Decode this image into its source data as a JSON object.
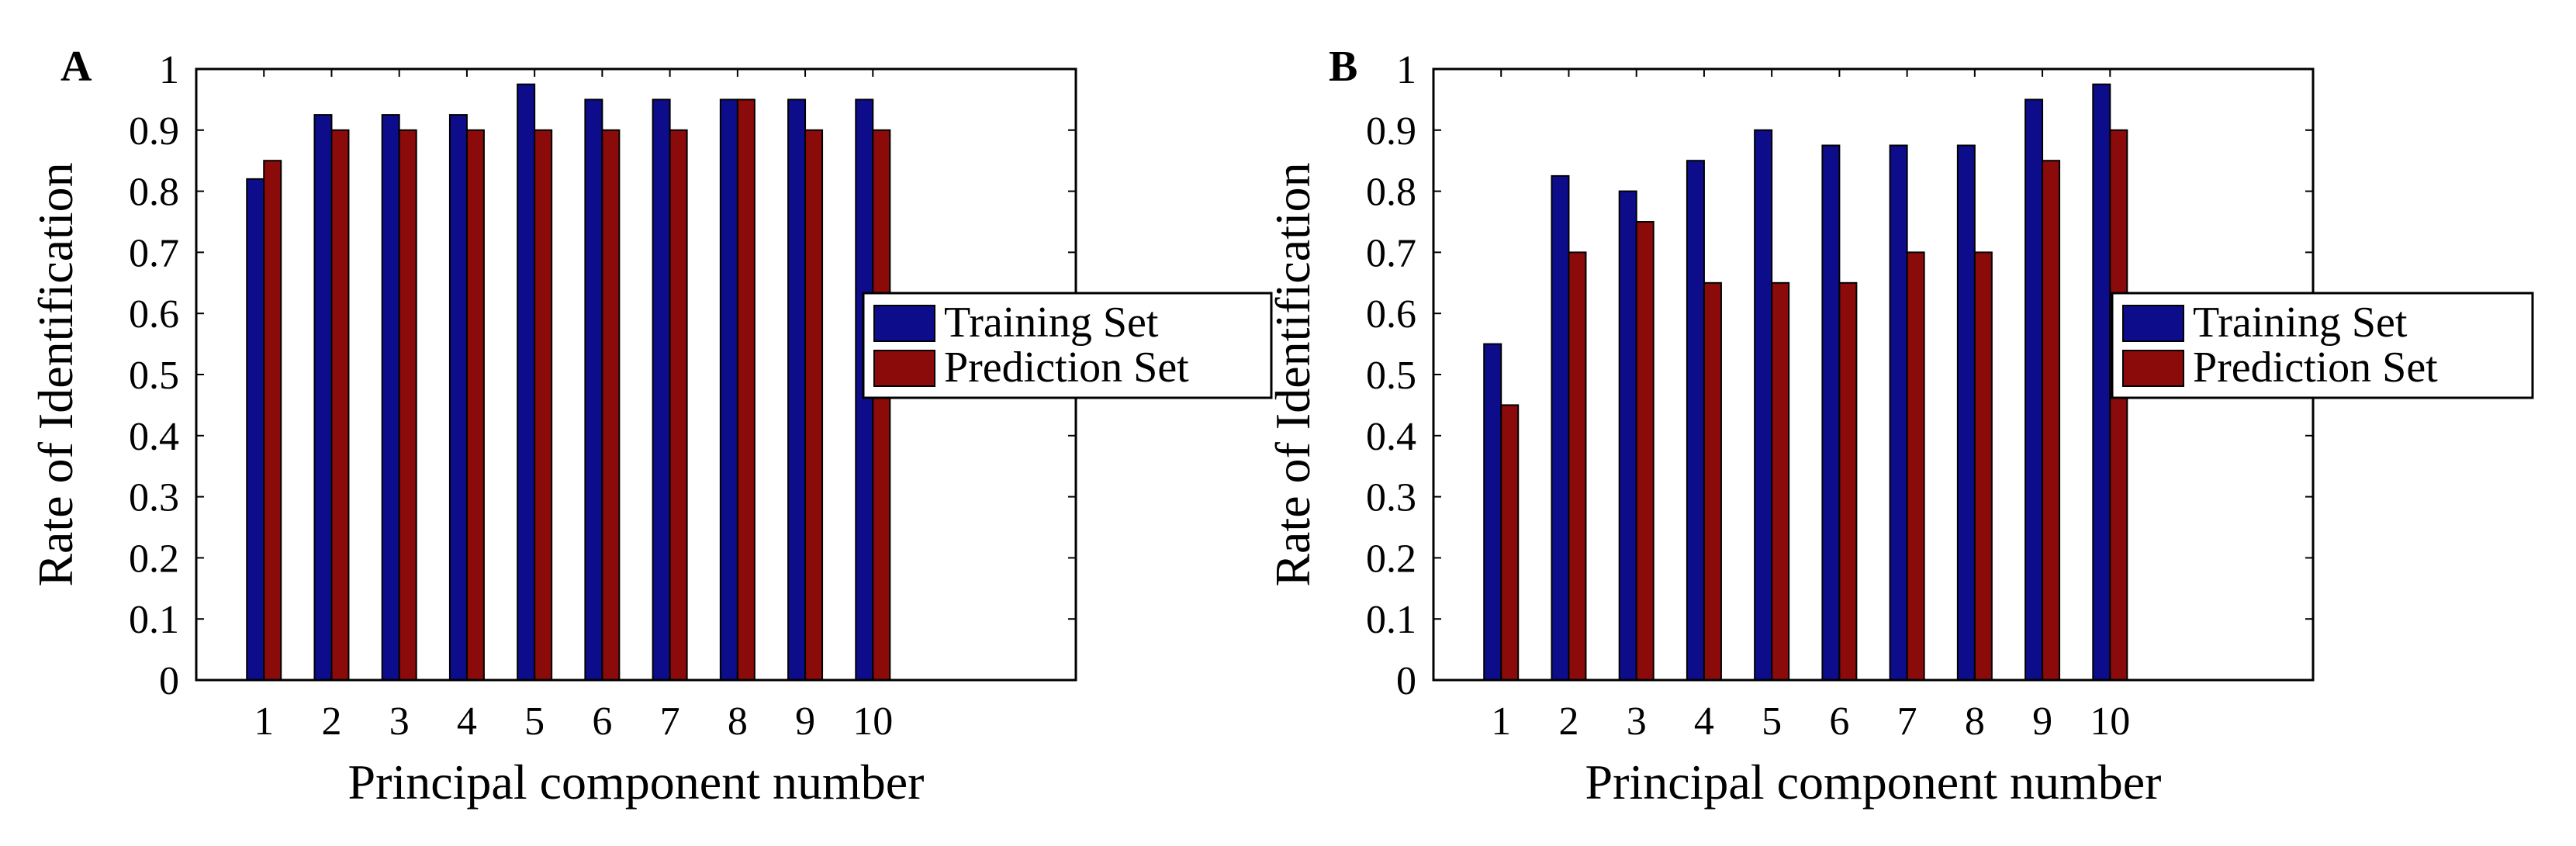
{
  "colors": {
    "training": "#0d0d8c",
    "prediction": "#8b0a0a",
    "frame": "#000000"
  },
  "chart_data": [
    {
      "type": "bar",
      "panel_label": "A",
      "categories": [
        "1",
        "2",
        "3",
        "4",
        "5",
        "6",
        "7",
        "8",
        "9",
        "10"
      ],
      "series": [
        {
          "name": "Training Set",
          "values": [
            0.82,
            0.925,
            0.925,
            0.925,
            0.975,
            0.95,
            0.95,
            0.95,
            0.95,
            0.95
          ]
        },
        {
          "name": "Prediction Set",
          "values": [
            0.85,
            0.9,
            0.9,
            0.9,
            0.9,
            0.9,
            0.9,
            0.95,
            0.9,
            0.9
          ]
        }
      ],
      "xlabel": "Principal component number",
      "ylabel": "Rate of Identification",
      "ylim": [
        0,
        1
      ],
      "xlim": [
        0,
        13
      ],
      "yticks": [
        "0",
        "0.1",
        "0.2",
        "0.3",
        "0.4",
        "0.5",
        "0.6",
        "0.7",
        "0.8",
        "0.9",
        "1"
      ],
      "legend_position": "right",
      "grid": false
    },
    {
      "type": "bar",
      "panel_label": "B",
      "categories": [
        "1",
        "2",
        "3",
        "4",
        "5",
        "6",
        "7",
        "8",
        "9",
        "10"
      ],
      "series": [
        {
          "name": "Training Set",
          "values": [
            0.55,
            0.825,
            0.8,
            0.85,
            0.9,
            0.875,
            0.875,
            0.875,
            0.95,
            0.975
          ]
        },
        {
          "name": "Prediction Set",
          "values": [
            0.45,
            0.7,
            0.75,
            0.65,
            0.65,
            0.65,
            0.7,
            0.7,
            0.85,
            0.9
          ]
        }
      ],
      "xlabel": "Principal component number",
      "ylabel": "Rate of Identification",
      "ylim": [
        0,
        1
      ],
      "xlim": [
        0,
        13
      ],
      "yticks": [
        "0",
        "0.1",
        "0.2",
        "0.3",
        "0.4",
        "0.5",
        "0.6",
        "0.7",
        "0.8",
        "0.9",
        "1"
      ],
      "legend_position": "right",
      "grid": false
    }
  ]
}
